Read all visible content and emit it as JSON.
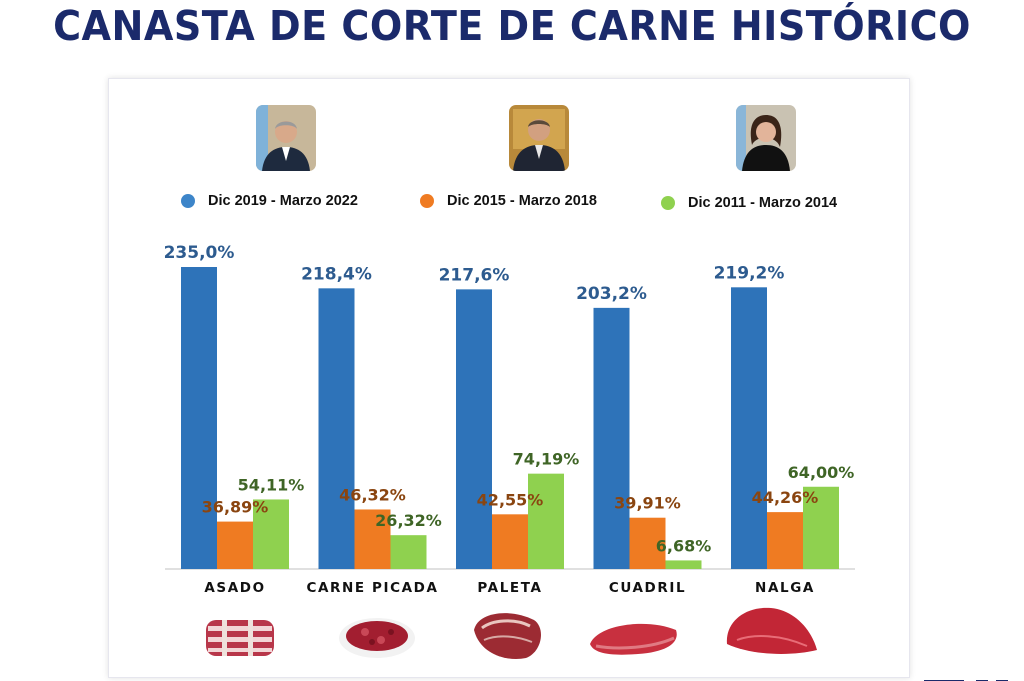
{
  "title": "CANASTA DE CORTE DE CARNE HISTÓRICO",
  "portraits": [
    {
      "icon": "portrait-president-2019-icon"
    },
    {
      "icon": "portrait-president-2015-icon"
    },
    {
      "icon": "portrait-president-2011-icon"
    }
  ],
  "food_icons": [
    "asado-meat-icon",
    "carne-picada-meat-icon",
    "paleta-meat-icon",
    "cuadril-meat-icon",
    "nalga-meat-icon"
  ],
  "chart_data": {
    "type": "bar",
    "categories": [
      "ASADO",
      "CARNE PICADA",
      "PALETA",
      "CUADRIL",
      "NALGA"
    ],
    "series": [
      {
        "name": "Dic 2019 - Marzo 2022",
        "color": "#2e73b9",
        "label_color": "#2d5b8f",
        "values": [
          235.0,
          218.4,
          217.6,
          203.2,
          219.2
        ],
        "labels": [
          "235,0%",
          "218,4%",
          "217,6%",
          "203,2%",
          "219,2%"
        ]
      },
      {
        "name": "Dic 2015 - Marzo 2018",
        "color": "#ef7b22",
        "label_color": "#8a4510",
        "values": [
          36.89,
          46.32,
          42.55,
          39.91,
          44.26
        ],
        "labels": [
          "36,89%",
          "46,32%",
          "42,55%",
          "39,91%",
          "44,26%"
        ]
      },
      {
        "name": "Dic 2011 - Marzo 2014",
        "color": "#8fd14f",
        "label_color": "#3f6526",
        "values": [
          54.11,
          26.32,
          74.19,
          6.68,
          64.0
        ],
        "labels": [
          "54,11%",
          "26,32%",
          "74,19%",
          "6,68%",
          "64,00%"
        ]
      }
    ],
    "ylim": [
      0,
      235
    ],
    "grid": false,
    "legend_position": "top"
  }
}
